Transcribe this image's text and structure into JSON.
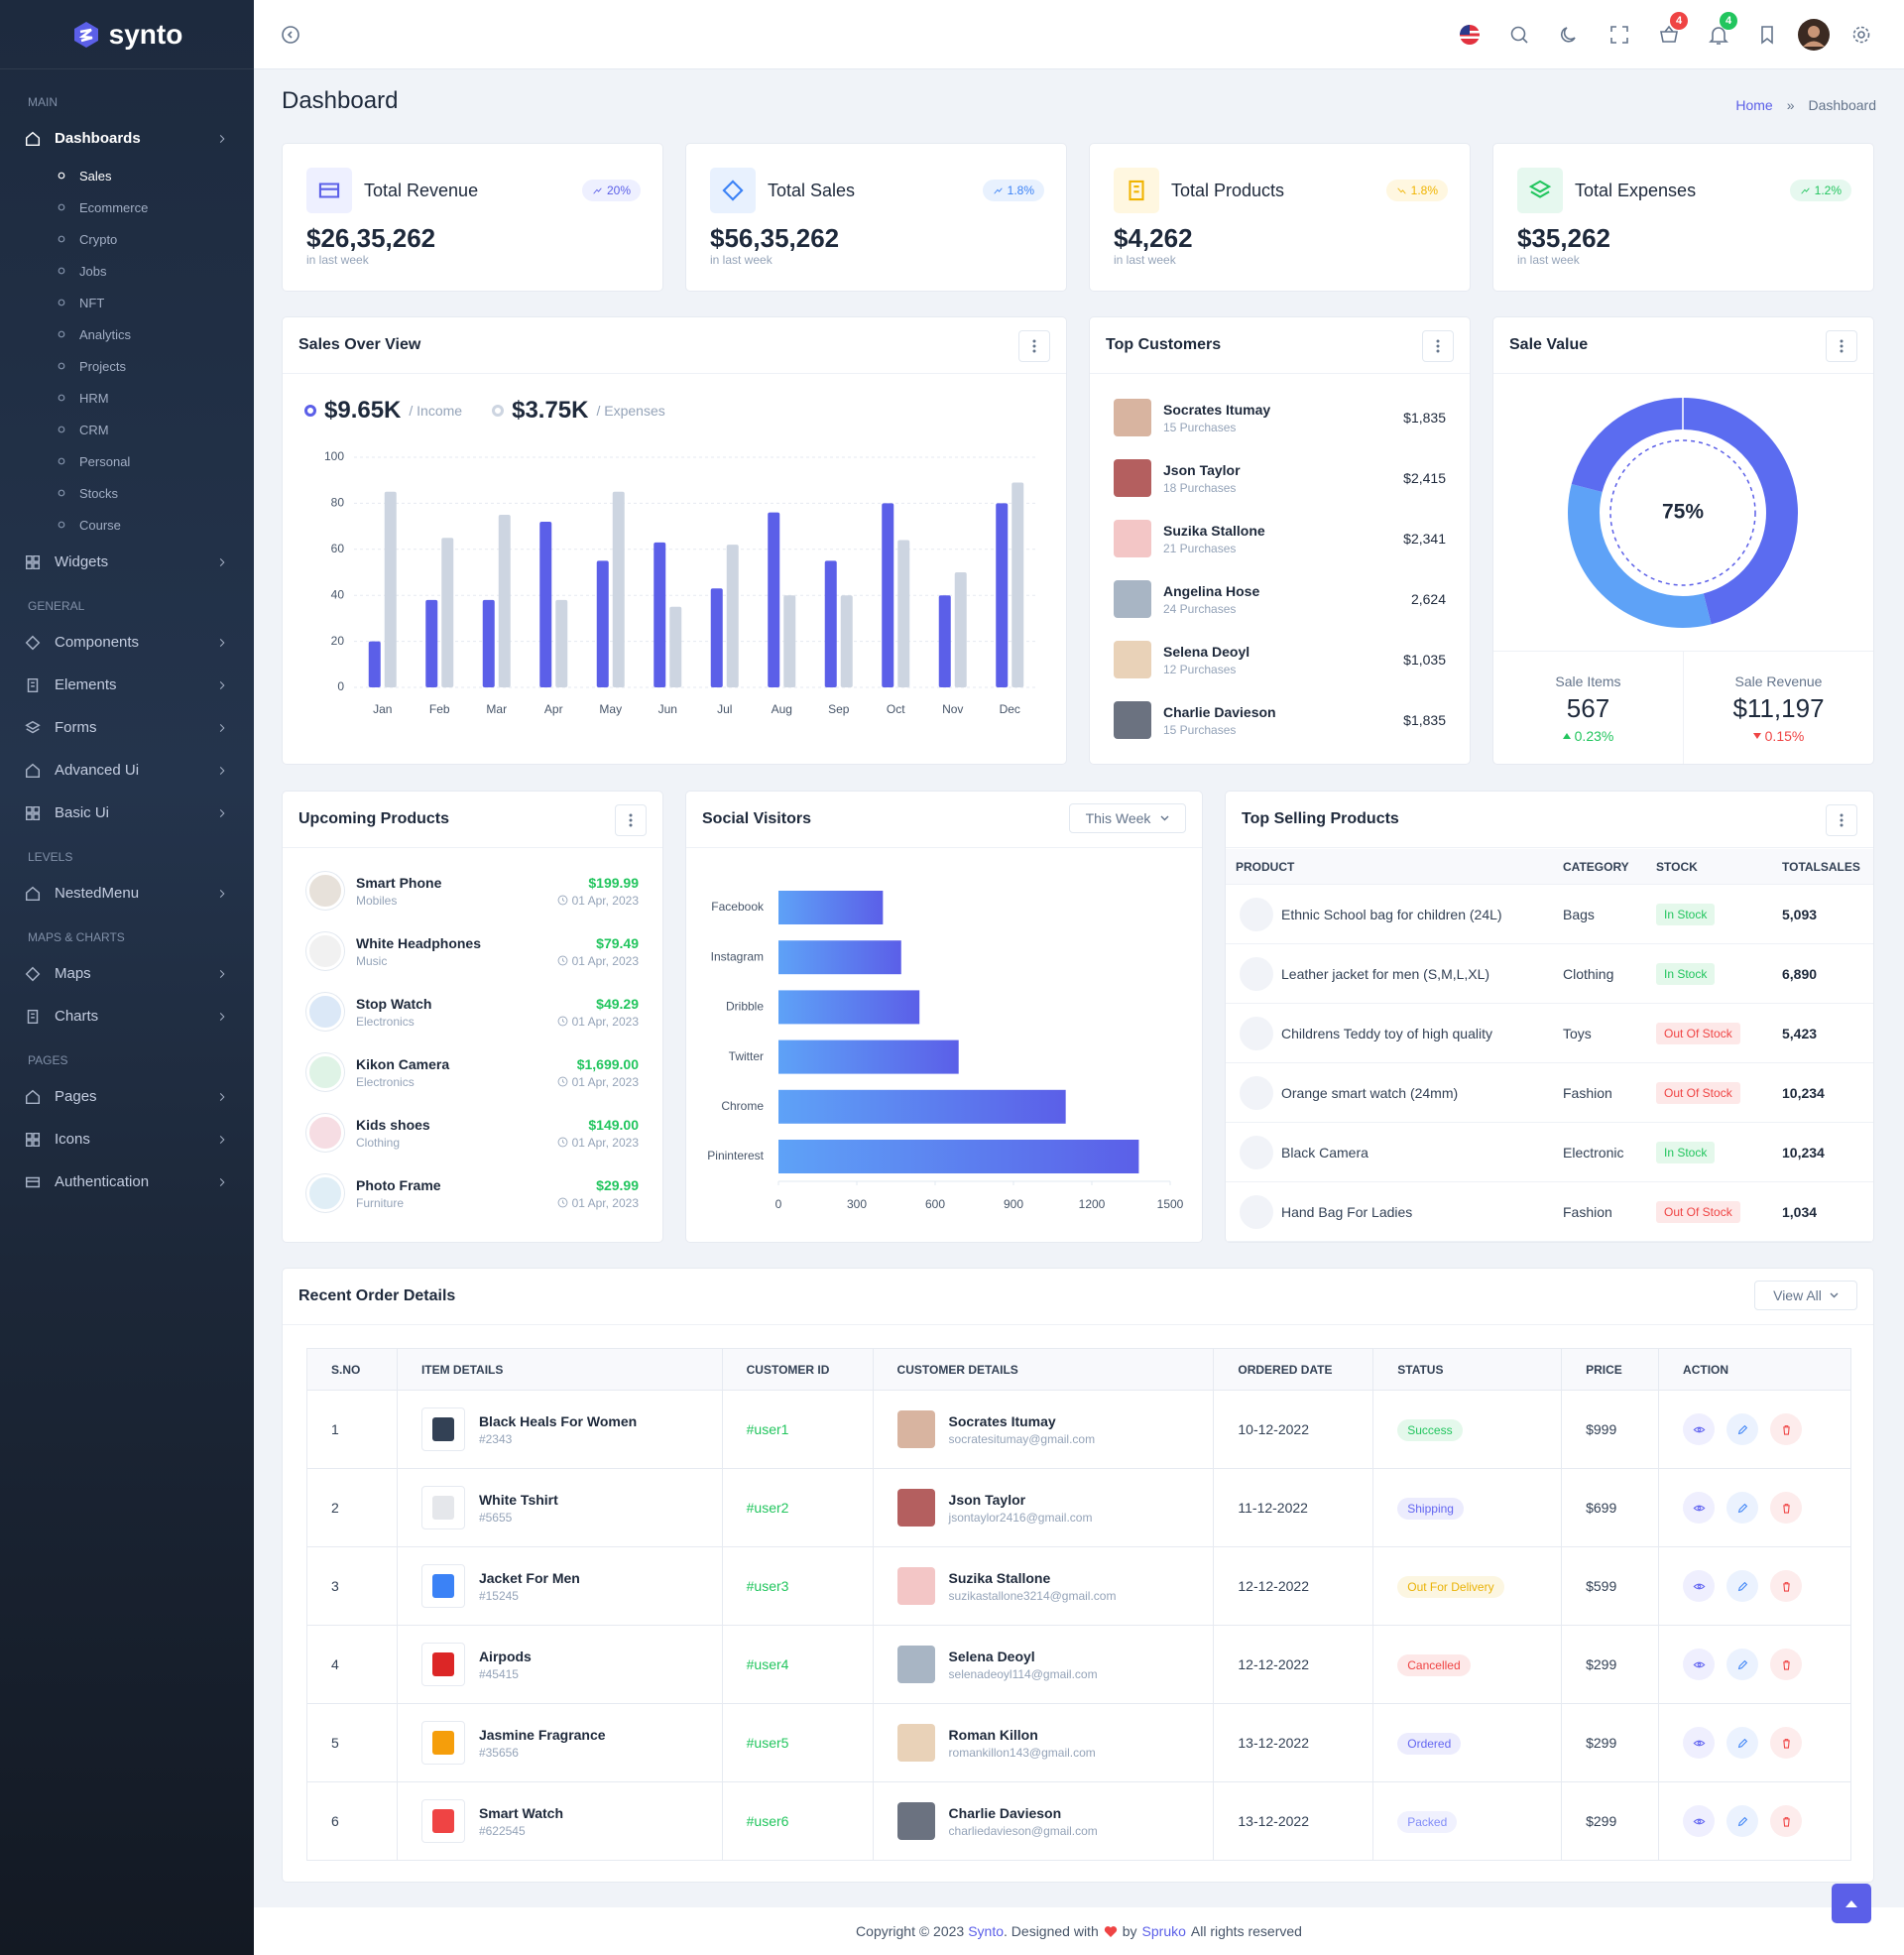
{
  "sidebar": {
    "brand": "synto",
    "sections": [
      {
        "title": "MAIN",
        "items": [
          {
            "label": "Dashboards",
            "sub": [
              "Sales",
              "Ecommerce",
              "Crypto",
              "Jobs",
              "NFT",
              "Analytics",
              "Projects",
              "HRM",
              "CRM",
              "Personal",
              "Stocks",
              "Course"
            ]
          },
          {
            "label": "Widgets"
          }
        ]
      },
      {
        "title": "GENERAL",
        "items": [
          {
            "label": "Components"
          },
          {
            "label": "Elements"
          },
          {
            "label": "Forms"
          },
          {
            "label": "Advanced Ui"
          },
          {
            "label": "Basic Ui"
          }
        ]
      },
      {
        "title": "LEVELS",
        "items": [
          {
            "label": "NestedMenu"
          }
        ]
      },
      {
        "title": "MAPS & CHARTS",
        "items": [
          {
            "label": "Maps"
          },
          {
            "label": "Charts"
          }
        ]
      },
      {
        "title": "PAGES",
        "items": [
          {
            "label": "Pages"
          },
          {
            "label": "Icons"
          },
          {
            "label": "Authentication"
          }
        ]
      }
    ]
  },
  "header": {
    "cart_badge": 4,
    "notification_badge": 4
  },
  "page_header": {
    "title": "Dashboard",
    "breadcrumb": [
      "Home",
      "Dashboard"
    ]
  },
  "stats": [
    {
      "title": "Total Revenue",
      "value": "$26,35,262",
      "change": "20%",
      "note": "in last week"
    },
    {
      "title": "Total Sales",
      "value": "$56,35,262",
      "change": "1.8%",
      "note": "in last week"
    },
    {
      "title": "Total Products",
      "value": "$4,262",
      "change": "1.8%",
      "note": "in last week"
    },
    {
      "title": "Total Expenses",
      "value": "$35,262",
      "change": "1.2%",
      "note": "in last week"
    }
  ],
  "chart_data": [
    {
      "type": "bar",
      "title": "Sales Over View",
      "categories": [
        "Jan",
        "Feb",
        "Mar",
        "Apr",
        "May",
        "Jun",
        "Jul",
        "Aug",
        "Sep",
        "Oct",
        "Nov",
        "Dec"
      ],
      "series": [
        {
          "name": "/ Income",
          "total": "$9.65K",
          "color": "#5b5fe8",
          "values": [
            20,
            38,
            38,
            72,
            55,
            63,
            43,
            76,
            55,
            80,
            40,
            80
          ]
        },
        {
          "name": "/ Expenses",
          "total": "$3.75K",
          "color": "#cdd5e1",
          "values": [
            85,
            65,
            75,
            38,
            85,
            35,
            62,
            40,
            40,
            64,
            50,
            89
          ]
        }
      ],
      "ylim": [
        0,
        100
      ],
      "yticks": [
        0,
        20,
        40,
        60,
        80,
        100
      ],
      "grid": true
    },
    {
      "type": "horizontal_bar",
      "title": "Social Visitors",
      "period_selector": "This Week",
      "categories": [
        "Facebook",
        "Instagram",
        "Dribble",
        "Twitter",
        "Chrome",
        "Pininterest"
      ],
      "values": [
        400,
        470,
        540,
        690,
        1100,
        1380
      ],
      "colors": [
        "#5ea2f7",
        "#5b5fe8"
      ],
      "xlim": [
        0,
        1500
      ],
      "xticks": [
        0,
        300,
        600,
        900,
        1200,
        1500
      ]
    },
    {
      "type": "donut",
      "title": "Sale Value",
      "center_label": "75%",
      "values": [
        46,
        33,
        21
      ],
      "colors": [
        "#5b6cf0",
        "#5ea2f7",
        "#5b6cf0"
      ]
    }
  ],
  "sale_value": {
    "items_label": "Sale Items",
    "items": 567,
    "items_change": "0.23%",
    "revenue_label": "Sale Revenue",
    "revenue": "$11,197",
    "revenue_change": "0.15%"
  },
  "top_customers": {
    "title": "Top Customers",
    "rows": [
      {
        "name": "Socrates Itumay",
        "purchases": "15 Purchases",
        "amount": "$1,835"
      },
      {
        "name": "Json Taylor",
        "purchases": "18 Purchases",
        "amount": "$2,415"
      },
      {
        "name": "Suzika Stallone",
        "purchases": "21 Purchases",
        "amount": "$2,341"
      },
      {
        "name": "Angelina Hose",
        "purchases": "24 Purchases",
        "amount": "2,624"
      },
      {
        "name": "Selena Deoyl",
        "purchases": "12 Purchases",
        "amount": "$1,035"
      },
      {
        "name": "Charlie Davieson",
        "purchases": "15 Purchases",
        "amount": "$1,835"
      }
    ]
  },
  "upcoming_products": {
    "title": "Upcoming Products",
    "rows": [
      {
        "name": "Smart Phone",
        "category": "Mobiles",
        "price": "$199.99",
        "date": "01 Apr, 2023"
      },
      {
        "name": "White Headphones",
        "category": "Music",
        "price": "$79.49",
        "date": "01 Apr, 2023"
      },
      {
        "name": "Stop Watch",
        "category": "Electronics",
        "price": "$49.29",
        "date": "01 Apr, 2023"
      },
      {
        "name": "Kikon Camera",
        "category": "Electronics",
        "price": "$1,699.00",
        "date": "01 Apr, 2023"
      },
      {
        "name": "Kids shoes",
        "category": "Clothing",
        "price": "$149.00",
        "date": "01 Apr, 2023"
      },
      {
        "name": "Photo Frame",
        "category": "Furniture",
        "price": "$29.99",
        "date": "01 Apr, 2023"
      }
    ]
  },
  "top_selling": {
    "title": "Top Selling Products",
    "headers": [
      "PRODUCT",
      "CATEGORY",
      "STOCK",
      "TOTALSALES"
    ],
    "rows": [
      {
        "product": "Ethnic School bag for children (24L)",
        "category": "Bags",
        "stock": "In Stock",
        "stock_color": "#22c55e",
        "total": "5,093"
      },
      {
        "product": "Leather jacket for men (S,M,L,XL)",
        "category": "Clothing",
        "stock": "In Stock",
        "stock_color": "#22c55e",
        "total": "6,890"
      },
      {
        "product": "Childrens Teddy toy of high quality",
        "category": "Toys",
        "stock": "Out Of Stock",
        "stock_color": "#ef4444",
        "total": "5,423"
      },
      {
        "product": "Orange smart watch (24mm)",
        "category": "Fashion",
        "stock": "Out Of Stock",
        "stock_color": "#ef4444",
        "total": "10,234"
      },
      {
        "product": "Black Camera",
        "category": "Electronic",
        "stock": "In Stock",
        "stock_color": "#22c55e",
        "total": "10,234"
      },
      {
        "product": "Hand Bag For Ladies",
        "category": "Fashion",
        "stock": "Out Of Stock",
        "stock_color": "#ef4444",
        "total": "1,034"
      }
    ]
  },
  "recent_orders": {
    "title": "Recent Order Details",
    "view_all": "View All",
    "headers": [
      "S.NO",
      "ITEM DETAILS",
      "CUSTOMER ID",
      "CUSTOMER DETAILS",
      "ORDERED DATE",
      "STATUS",
      "PRICE",
      "ACTION"
    ],
    "rows": [
      {
        "sno": 1,
        "item": "Black Heals For Women",
        "item_id": "#2343",
        "customer_id": "#user1",
        "customer": "Socrates Itumay",
        "email": "socratesitumay@gmail.com",
        "date": "10-12-2022",
        "status": "Success",
        "status_color": "#22c55e",
        "price": "$999"
      },
      {
        "sno": 2,
        "item": "White Tshirt",
        "item_id": "#5655",
        "customer_id": "#user2",
        "customer": "Json Taylor",
        "email": "jsontaylor2416@gmail.com",
        "date": "11-12-2022",
        "status": "Shipping",
        "status_color": "#6366f1",
        "price": "$699"
      },
      {
        "sno": 3,
        "item": "Jacket For Men",
        "item_id": "#15245",
        "customer_id": "#user3",
        "customer": "Suzika Stallone",
        "email": "suzikastallone3214@gmail.com",
        "date": "12-12-2022",
        "status": "Out For Delivery",
        "status_color": "#eab308",
        "price": "$599"
      },
      {
        "sno": 4,
        "item": "Airpods",
        "item_id": "#45415",
        "customer_id": "#user4",
        "customer": "Selena Deoyl",
        "email": "selenadeoyl114@gmail.com",
        "date": "12-12-2022",
        "status": "Cancelled",
        "status_color": "#ef4444",
        "price": "$299"
      },
      {
        "sno": 5,
        "item": "Jasmine Fragrance",
        "item_id": "#35656",
        "customer_id": "#user5",
        "customer": "Roman Killon",
        "email": "romankillon143@gmail.com",
        "date": "13-12-2022",
        "status": "Ordered",
        "status_color": "#6366f1",
        "price": "$299"
      },
      {
        "sno": 6,
        "item": "Smart Watch",
        "item_id": "#622545",
        "customer_id": "#user6",
        "customer": "Charlie Davieson",
        "email": "charliedavieson@gmail.com",
        "date": "13-12-2022",
        "status": "Packed",
        "status_color": "#818cf8",
        "price": "$299"
      }
    ]
  },
  "footer": {
    "copyright": "Copyright © 2023",
    "brand": "Synto",
    "designed": ". Designed with",
    "by": "by",
    "company": "Spruko",
    "rights": "All rights reserved"
  }
}
